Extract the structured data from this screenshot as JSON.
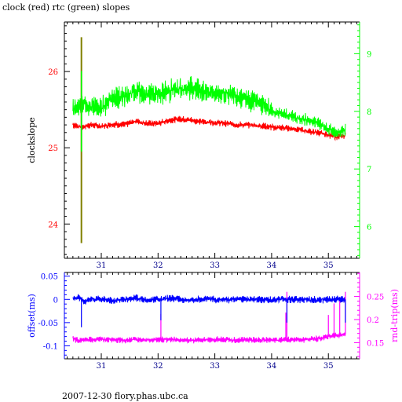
{
  "title": "clock (red) rtc (green) slopes",
  "footer": "2007-12-30 flory.phas.ubc.ca",
  "colors": {
    "clock": "#ff0000",
    "rtc": "#00ff00",
    "offset": "#0000ff",
    "rtt": "#ff00ff",
    "marker": "#808000",
    "axis": "#000000"
  },
  "chart_data": [
    {
      "type": "line",
      "title": "clock (red) rtc (green) slopes",
      "xlim": [
        30.35,
        35.55
      ],
      "xticks": [
        31,
        32,
        33,
        34,
        35
      ],
      "ylabel": "clockslope",
      "ylim": [
        23.55,
        26.65
      ],
      "yticks": [
        24,
        25,
        26
      ],
      "y2lim": [
        5.45,
        9.55
      ],
      "y2ticks": [
        6,
        7,
        8,
        9
      ],
      "y2_color": "#00ff00",
      "series": [
        {
          "axis": "left",
          "color": "#ff0000",
          "x": [
            30.5,
            30.65,
            30.8,
            31.0,
            31.2,
            31.4,
            31.6,
            31.8,
            32.0,
            32.2,
            32.4,
            32.6,
            32.8,
            33.0,
            33.2,
            33.4,
            33.6,
            33.8,
            34.0,
            34.2,
            34.4,
            34.6,
            34.8,
            35.0,
            35.15,
            35.3
          ],
          "y": [
            25.3,
            25.27,
            25.3,
            25.28,
            25.31,
            25.3,
            25.35,
            25.32,
            25.32,
            25.36,
            25.38,
            25.36,
            25.34,
            25.33,
            25.32,
            25.3,
            25.3,
            25.29,
            25.27,
            25.26,
            25.25,
            25.22,
            25.2,
            25.17,
            25.14,
            25.16
          ]
        },
        {
          "axis": "right",
          "color": "#00ff00",
          "x": [
            30.5,
            30.65,
            30.8,
            31.0,
            31.2,
            31.4,
            31.6,
            31.8,
            32.0,
            32.2,
            32.4,
            32.6,
            32.8,
            33.0,
            33.2,
            33.4,
            33.6,
            33.8,
            34.0,
            34.2,
            34.4,
            34.6,
            34.8,
            35.0,
            35.15,
            35.3
          ],
          "y": [
            8.0,
            8.15,
            8.1,
            8.05,
            8.2,
            8.25,
            8.35,
            8.3,
            8.3,
            8.35,
            8.4,
            8.4,
            8.35,
            8.3,
            8.3,
            8.25,
            8.2,
            8.15,
            8.0,
            7.95,
            7.9,
            7.85,
            7.8,
            7.7,
            7.62,
            7.68
          ]
        }
      ],
      "markers": [
        {
          "x": 30.65,
          "y_from": 23.75,
          "y_to": 26.45,
          "color": "#808000"
        },
        {
          "x": 30.65,
          "y2_from": 7.3,
          "y2_to": 8.7,
          "color": "#00ff00"
        }
      ]
    },
    {
      "type": "line",
      "ylabel": "offset(ms)",
      "y2label": "rnd-trip(ms)",
      "xlim": [
        30.35,
        35.55
      ],
      "xticks": [
        31,
        32,
        33,
        34,
        35
      ],
      "ylim": [
        -0.128,
        0.058
      ],
      "yticks": [
        -0.1,
        -0.05,
        0,
        0.05
      ],
      "y2lim": [
        0.115,
        0.302
      ],
      "y2ticks": [
        0.15,
        0.2,
        0.25
      ],
      "series": [
        {
          "name": "offset(ms)",
          "axis": "left",
          "color": "#0000ff",
          "x": [
            30.5,
            30.6,
            30.7,
            30.8,
            31.0,
            31.2,
            31.4,
            31.6,
            31.8,
            32.0,
            32.2,
            32.4,
            32.6,
            32.8,
            33.0,
            33.2,
            33.4,
            33.6,
            33.8,
            34.0,
            34.2,
            34.4,
            34.6,
            34.8,
            35.0,
            35.2,
            35.3
          ],
          "y": [
            0.0,
            0.005,
            -0.005,
            0.0,
            0.002,
            -0.003,
            0.0,
            0.004,
            -0.002,
            0.0,
            0.003,
            0.0,
            -0.002,
            0.002,
            0.0,
            -0.001,
            0.001,
            0.0,
            0.0,
            -0.001,
            0.001,
            0.0,
            0.0,
            -0.001,
            0.0,
            0.0,
            0.0
          ]
        },
        {
          "name": "rnd-trip(ms)",
          "axis": "right",
          "color": "#ff00ff",
          "x": [
            30.5,
            30.6,
            30.7,
            30.8,
            31.0,
            31.2,
            31.4,
            31.6,
            31.8,
            32.0,
            32.2,
            32.4,
            32.6,
            32.8,
            33.0,
            33.2,
            33.4,
            33.6,
            33.8,
            34.0,
            34.2,
            34.4,
            34.6,
            34.8,
            35.0,
            35.2,
            35.3
          ],
          "y": [
            0.158,
            0.155,
            0.157,
            0.156,
            0.157,
            0.156,
            0.155,
            0.157,
            0.156,
            0.156,
            0.157,
            0.156,
            0.155,
            0.156,
            0.157,
            0.156,
            0.156,
            0.156,
            0.155,
            0.156,
            0.156,
            0.156,
            0.157,
            0.158,
            0.163,
            0.166,
            0.168
          ]
        }
      ],
      "spikes": [
        {
          "series": "rnd-trip(ms)",
          "x": 32.05,
          "to": 0.212
        },
        {
          "series": "rnd-trip(ms)",
          "x": 34.25,
          "to": 0.215
        },
        {
          "series": "rnd-trip(ms)",
          "x": 34.27,
          "to": 0.26
        },
        {
          "series": "rnd-trip(ms)",
          "x": 35.0,
          "to": 0.21
        },
        {
          "series": "rnd-trip(ms)",
          "x": 35.1,
          "to": 0.235
        },
        {
          "series": "rnd-trip(ms)",
          "x": 35.2,
          "to": 0.24
        },
        {
          "series": "rnd-trip(ms)",
          "x": 35.3,
          "to": 0.26
        },
        {
          "series": "offset(ms)",
          "x": 30.65,
          "to": -0.06
        },
        {
          "series": "offset(ms)",
          "x": 32.05,
          "to": -0.045
        },
        {
          "series": "offset(ms)",
          "x": 34.27,
          "to": -0.05
        },
        {
          "series": "offset(ms)",
          "x": 35.3,
          "to": -0.05
        }
      ]
    }
  ]
}
